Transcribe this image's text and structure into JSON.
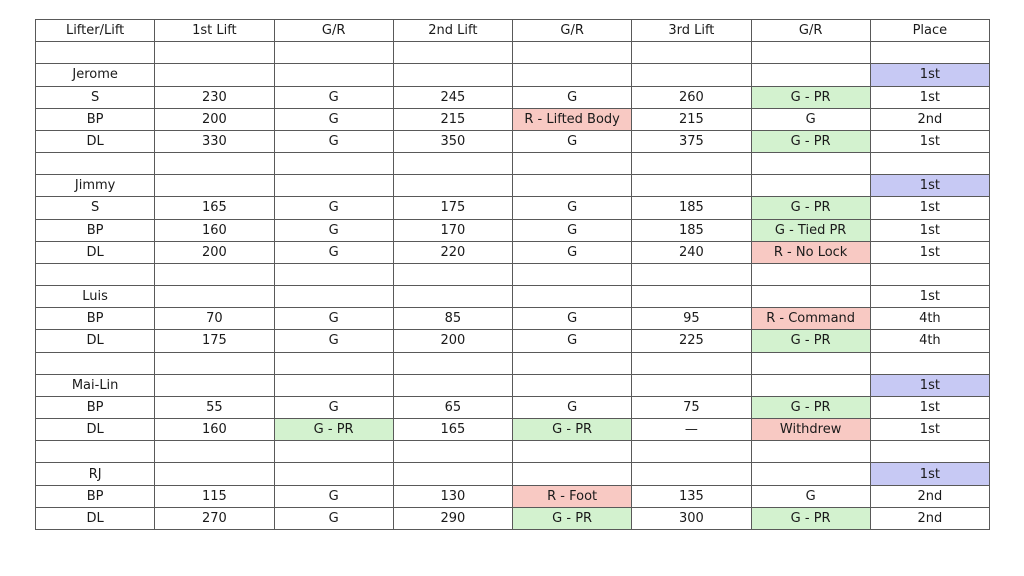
{
  "page": {
    "background": "#ffffff"
  },
  "table": {
    "title": "powerlifting-results-table",
    "cell_colors": {
      "good_lift": "#d3f2cf",
      "bad_lift": "#f8c9c3",
      "winner_place": "#c7c9f4",
      "default": "#ffffff"
    },
    "border_color": "#595959",
    "headers": [
      "Lifter/Lift",
      "1st Lift",
      "G/R",
      "2nd Lift",
      "G/R",
      "3rd Lift",
      "G/R",
      "Place"
    ],
    "rows": [
      {
        "type": "spacer",
        "cells": [
          {
            "t": ""
          },
          {
            "t": ""
          },
          {
            "t": ""
          },
          {
            "t": ""
          },
          {
            "t": ""
          },
          {
            "t": ""
          },
          {
            "t": ""
          },
          {
            "t": ""
          }
        ]
      },
      {
        "type": "lifter",
        "cells": [
          {
            "t": "Jerome"
          },
          {
            "t": ""
          },
          {
            "t": ""
          },
          {
            "t": ""
          },
          {
            "t": ""
          },
          {
            "t": ""
          },
          {
            "t": ""
          },
          {
            "t": "1st",
            "bg": "place"
          }
        ]
      },
      {
        "type": "lift",
        "cells": [
          {
            "t": "S"
          },
          {
            "t": "230"
          },
          {
            "t": "G"
          },
          {
            "t": "245"
          },
          {
            "t": "G"
          },
          {
            "t": "260"
          },
          {
            "t": "G - PR",
            "bg": "good"
          },
          {
            "t": "1st"
          }
        ]
      },
      {
        "type": "lift",
        "cells": [
          {
            "t": "BP"
          },
          {
            "t": "200"
          },
          {
            "t": "G"
          },
          {
            "t": "215"
          },
          {
            "t": "R - Lifted Body",
            "bg": "bad"
          },
          {
            "t": "215"
          },
          {
            "t": "G"
          },
          {
            "t": "2nd"
          }
        ]
      },
      {
        "type": "lift",
        "cells": [
          {
            "t": "DL"
          },
          {
            "t": "330"
          },
          {
            "t": "G"
          },
          {
            "t": "350"
          },
          {
            "t": "G"
          },
          {
            "t": "375"
          },
          {
            "t": "G - PR",
            "bg": "good"
          },
          {
            "t": "1st"
          }
        ]
      },
      {
        "type": "spacer",
        "cells": [
          {
            "t": ""
          },
          {
            "t": ""
          },
          {
            "t": ""
          },
          {
            "t": ""
          },
          {
            "t": ""
          },
          {
            "t": ""
          },
          {
            "t": ""
          },
          {
            "t": ""
          }
        ]
      },
      {
        "type": "lifter",
        "cells": [
          {
            "t": "Jimmy"
          },
          {
            "t": ""
          },
          {
            "t": ""
          },
          {
            "t": ""
          },
          {
            "t": ""
          },
          {
            "t": ""
          },
          {
            "t": ""
          },
          {
            "t": "1st",
            "bg": "place"
          }
        ]
      },
      {
        "type": "lift",
        "cells": [
          {
            "t": "S"
          },
          {
            "t": "165"
          },
          {
            "t": "G"
          },
          {
            "t": "175"
          },
          {
            "t": "G"
          },
          {
            "t": "185"
          },
          {
            "t": "G - PR",
            "bg": "good"
          },
          {
            "t": "1st"
          }
        ]
      },
      {
        "type": "lift",
        "cells": [
          {
            "t": "BP"
          },
          {
            "t": "160"
          },
          {
            "t": "G"
          },
          {
            "t": "170"
          },
          {
            "t": "G"
          },
          {
            "t": "185"
          },
          {
            "t": "G - Tied PR",
            "bg": "good"
          },
          {
            "t": "1st"
          }
        ]
      },
      {
        "type": "lift",
        "cells": [
          {
            "t": "DL"
          },
          {
            "t": "200"
          },
          {
            "t": "G"
          },
          {
            "t": "220"
          },
          {
            "t": "G"
          },
          {
            "t": "240"
          },
          {
            "t": "R - No Lock",
            "bg": "bad"
          },
          {
            "t": "1st"
          }
        ]
      },
      {
        "type": "spacer",
        "cells": [
          {
            "t": ""
          },
          {
            "t": ""
          },
          {
            "t": ""
          },
          {
            "t": ""
          },
          {
            "t": ""
          },
          {
            "t": ""
          },
          {
            "t": ""
          },
          {
            "t": ""
          }
        ]
      },
      {
        "type": "lifter",
        "cells": [
          {
            "t": "Luis"
          },
          {
            "t": ""
          },
          {
            "t": ""
          },
          {
            "t": ""
          },
          {
            "t": ""
          },
          {
            "t": ""
          },
          {
            "t": ""
          },
          {
            "t": "1st"
          }
        ]
      },
      {
        "type": "lift",
        "cells": [
          {
            "t": "BP"
          },
          {
            "t": "70"
          },
          {
            "t": "G"
          },
          {
            "t": "85"
          },
          {
            "t": "G"
          },
          {
            "t": "95"
          },
          {
            "t": "R - Command",
            "bg": "bad"
          },
          {
            "t": "4th"
          }
        ]
      },
      {
        "type": "lift",
        "cells": [
          {
            "t": "DL"
          },
          {
            "t": "175"
          },
          {
            "t": "G"
          },
          {
            "t": "200"
          },
          {
            "t": "G"
          },
          {
            "t": "225"
          },
          {
            "t": "G - PR",
            "bg": "good"
          },
          {
            "t": "4th"
          }
        ]
      },
      {
        "type": "spacer",
        "cells": [
          {
            "t": ""
          },
          {
            "t": ""
          },
          {
            "t": ""
          },
          {
            "t": ""
          },
          {
            "t": ""
          },
          {
            "t": ""
          },
          {
            "t": ""
          },
          {
            "t": ""
          }
        ]
      },
      {
        "type": "lifter",
        "cells": [
          {
            "t": "Mai-Lin"
          },
          {
            "t": ""
          },
          {
            "t": ""
          },
          {
            "t": ""
          },
          {
            "t": ""
          },
          {
            "t": ""
          },
          {
            "t": ""
          },
          {
            "t": "1st",
            "bg": "place"
          }
        ]
      },
      {
        "type": "lift",
        "cells": [
          {
            "t": "BP"
          },
          {
            "t": "55"
          },
          {
            "t": "G"
          },
          {
            "t": "65"
          },
          {
            "t": "G"
          },
          {
            "t": "75"
          },
          {
            "t": "G - PR",
            "bg": "good"
          },
          {
            "t": "1st"
          }
        ]
      },
      {
        "type": "lift",
        "cells": [
          {
            "t": "DL"
          },
          {
            "t": "160"
          },
          {
            "t": "G - PR",
            "bg": "good"
          },
          {
            "t": "165"
          },
          {
            "t": "G - PR",
            "bg": "good"
          },
          {
            "t": "—"
          },
          {
            "t": "Withdrew",
            "bg": "bad"
          },
          {
            "t": "1st"
          }
        ]
      },
      {
        "type": "spacer",
        "cells": [
          {
            "t": ""
          },
          {
            "t": ""
          },
          {
            "t": ""
          },
          {
            "t": ""
          },
          {
            "t": ""
          },
          {
            "t": ""
          },
          {
            "t": ""
          },
          {
            "t": ""
          }
        ]
      },
      {
        "type": "lifter",
        "cells": [
          {
            "t": "RJ"
          },
          {
            "t": ""
          },
          {
            "t": ""
          },
          {
            "t": ""
          },
          {
            "t": ""
          },
          {
            "t": ""
          },
          {
            "t": ""
          },
          {
            "t": "1st",
            "bg": "place"
          }
        ]
      },
      {
        "type": "lift",
        "cells": [
          {
            "t": "BP"
          },
          {
            "t": "115"
          },
          {
            "t": "G"
          },
          {
            "t": "130"
          },
          {
            "t": "R - Foot",
            "bg": "bad"
          },
          {
            "t": "135"
          },
          {
            "t": "G"
          },
          {
            "t": "2nd"
          }
        ]
      },
      {
        "type": "lift",
        "cells": [
          {
            "t": "DL"
          },
          {
            "t": "270"
          },
          {
            "t": "G"
          },
          {
            "t": "290"
          },
          {
            "t": "G - PR",
            "bg": "good"
          },
          {
            "t": "300"
          },
          {
            "t": "G - PR",
            "bg": "good"
          },
          {
            "t": "2nd"
          }
        ]
      }
    ]
  }
}
